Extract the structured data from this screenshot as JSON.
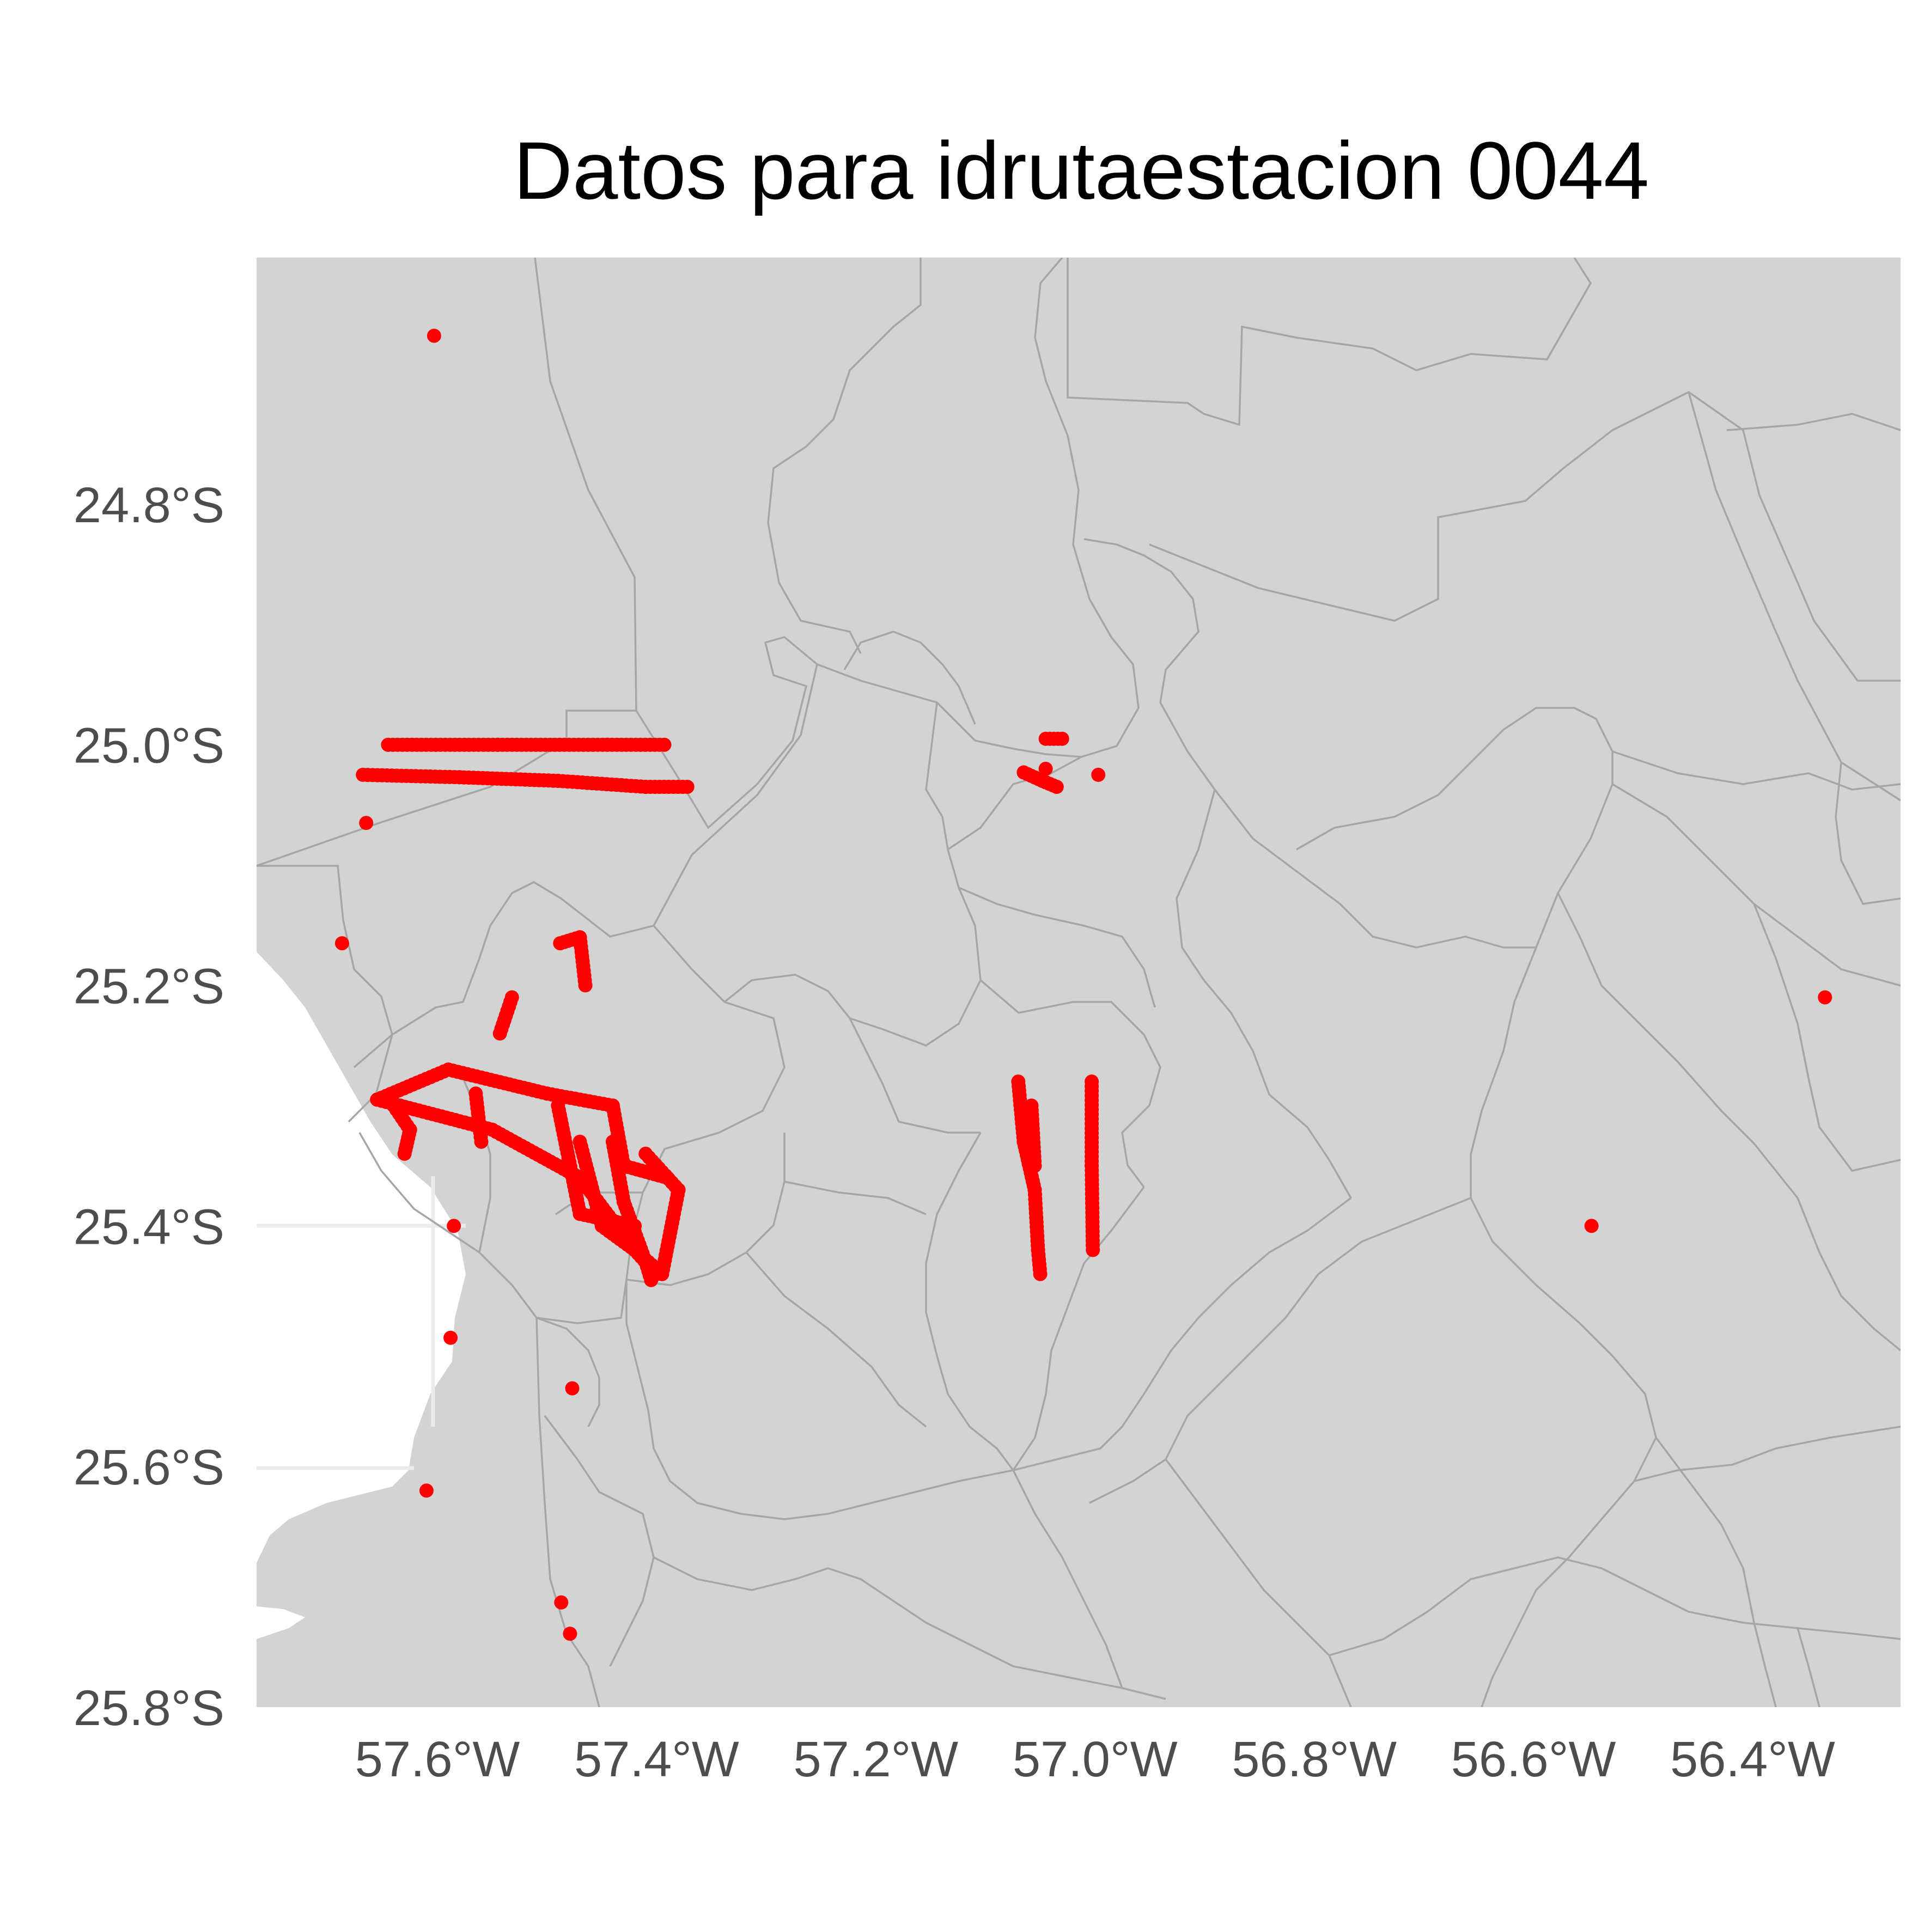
{
  "title": "Datos para idrutaestacion 0044",
  "colors": {
    "land": "#d3d3d3",
    "boundary": "#a6a6a6",
    "water": "#ffffff",
    "gridline": "#ebebeb",
    "points": "#ff0000",
    "title": "#000000",
    "tick_label": "#4d4d4d"
  },
  "axes": {
    "x_ticks": [
      {
        "value": -57.6,
        "label": "57.6°W"
      },
      {
        "value": -57.4,
        "label": "57.4°W"
      },
      {
        "value": -57.2,
        "label": "57.2°W"
      },
      {
        "value": -57.0,
        "label": "57.0°W"
      },
      {
        "value": -56.8,
        "label": "56.8°W"
      },
      {
        "value": -56.6,
        "label": "56.6°W"
      },
      {
        "value": -56.4,
        "label": "56.4°W"
      }
    ],
    "y_ticks": [
      {
        "value": -24.8,
        "label": "24.8°S"
      },
      {
        "value": -25.0,
        "label": "25.0°S"
      },
      {
        "value": -25.2,
        "label": "25.2°S"
      },
      {
        "value": -25.4,
        "label": "25.4°S"
      },
      {
        "value": -25.6,
        "label": "25.6°S"
      },
      {
        "value": -25.8,
        "label": "25.8°S"
      }
    ],
    "lon_range": [
      -57.765,
      -56.265
    ],
    "lat_range": [
      -25.8,
      -24.595
    ]
  },
  "chart_data": {
    "type": "scatter",
    "x_unit": "longitude (degrees)",
    "y_unit": "latitude (degrees)",
    "point_color": "#ff0000",
    "isolated_points": [
      [
        -57.603,
        -24.66
      ],
      [
        -57.665,
        -25.065
      ],
      [
        -57.687,
        -25.165
      ],
      [
        -57.585,
        -25.4
      ],
      [
        -57.588,
        -25.493
      ],
      [
        -57.477,
        -25.535
      ],
      [
        -57.61,
        -25.62
      ],
      [
        -57.487,
        -25.713
      ],
      [
        -57.479,
        -25.739
      ],
      [
        -56.547,
        -25.4
      ],
      [
        -56.334,
        -25.21
      ],
      [
        -56.997,
        -25.025
      ],
      [
        -57.045,
        -25.02
      ]
    ],
    "tracks": [
      {
        "points": [
          [
            -57.645,
            -25.0
          ],
          [
            -57.545,
            -25.0
          ],
          [
            -57.445,
            -25.0
          ],
          [
            -57.393,
            -25.0
          ]
        ]
      },
      {
        "points": [
          [
            -57.668,
            -25.025
          ],
          [
            -57.58,
            -25.027
          ],
          [
            -57.49,
            -25.03
          ],
          [
            -57.41,
            -25.035
          ],
          [
            -57.372,
            -25.035
          ]
        ]
      },
      {
        "points": [
          [
            -57.488,
            -25.165
          ],
          [
            -57.47,
            -25.16
          ],
          [
            -57.465,
            -25.2
          ]
        ]
      },
      {
        "points": [
          [
            -57.543,
            -25.24
          ],
          [
            -57.532,
            -25.21
          ]
        ]
      },
      {
        "points": [
          [
            -57.655,
            -25.295
          ],
          [
            -57.59,
            -25.27
          ],
          [
            -57.5,
            -25.29
          ],
          [
            -57.44,
            -25.3
          ],
          [
            -57.43,
            -25.35
          ],
          [
            -57.39,
            -25.36
          ]
        ]
      },
      {
        "points": [
          [
            -57.655,
            -25.295
          ],
          [
            -57.55,
            -25.32
          ],
          [
            -57.47,
            -25.36
          ],
          [
            -57.42,
            -25.42
          ],
          [
            -57.4,
            -25.44
          ]
        ]
      },
      {
        "points": [
          [
            -57.47,
            -25.33
          ],
          [
            -57.45,
            -25.4
          ],
          [
            -57.42,
            -25.42
          ],
          [
            -57.395,
            -25.44
          ],
          [
            -57.38,
            -25.37
          ],
          [
            -57.41,
            -25.34
          ]
        ]
      },
      {
        "points": [
          [
            -57.44,
            -25.33
          ],
          [
            -57.43,
            -25.38
          ],
          [
            -57.41,
            -25.43
          ],
          [
            -57.405,
            -25.445
          ]
        ]
      },
      {
        "points": [
          [
            -57.49,
            -25.3
          ],
          [
            -57.47,
            -25.39
          ],
          [
            -57.42,
            -25.4
          ]
        ]
      },
      {
        "points": [
          [
            -57.64,
            -25.3
          ],
          [
            -57.625,
            -25.32
          ],
          [
            -57.63,
            -25.34
          ]
        ]
      },
      {
        "points": [
          [
            -57.565,
            -25.29
          ],
          [
            -57.56,
            -25.33
          ]
        ]
      },
      {
        "points": [
          [
            -57.07,
            -25.28
          ],
          [
            -57.065,
            -25.33
          ],
          [
            -57.055,
            -25.37
          ],
          [
            -57.052,
            -25.42
          ],
          [
            -57.05,
            -25.44
          ]
        ]
      },
      {
        "points": [
          [
            -57.003,
            -25.28
          ],
          [
            -57.003,
            -25.35
          ],
          [
            -57.002,
            -25.42
          ]
        ]
      },
      {
        "points": [
          [
            -57.058,
            -25.3
          ],
          [
            -57.055,
            -25.35
          ]
        ]
      },
      {
        "points": [
          [
            -57.045,
            -24.995
          ],
          [
            -57.03,
            -24.995
          ]
        ]
      },
      {
        "points": [
          [
            -57.065,
            -25.023
          ],
          [
            -57.048,
            -25.03
          ],
          [
            -57.035,
            -25.035
          ]
        ]
      }
    ]
  }
}
